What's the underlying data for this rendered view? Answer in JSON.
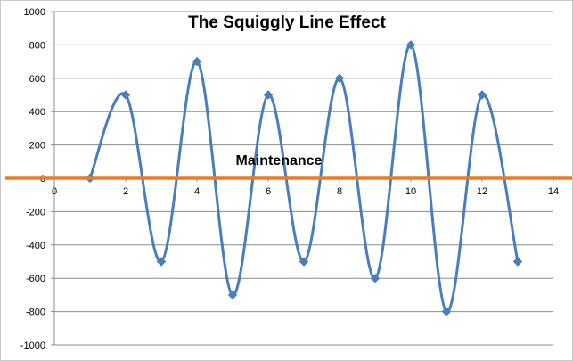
{
  "chart_data": {
    "type": "line",
    "title": "The Squiggly Line Effect",
    "xlabel": "",
    "ylabel": "",
    "xlim": [
      0,
      14
    ],
    "ylim": [
      -1000,
      1000
    ],
    "x_ticks": [
      0,
      2,
      4,
      6,
      8,
      10,
      12,
      14
    ],
    "y_ticks": [
      1000,
      800,
      600,
      400,
      200,
      0,
      -200,
      -400,
      -600,
      -800,
      -1000
    ],
    "grid": "horizontal",
    "legend": "none",
    "series": [
      {
        "x": [
          1,
          2,
          3,
          4,
          5,
          6,
          7,
          8,
          9,
          10,
          11,
          12,
          13
        ],
        "values": [
          0,
          500,
          -500,
          700,
          -700,
          500,
          -500,
          600,
          -600,
          800,
          -800,
          500,
          -500
        ],
        "color": "#4a7ebb",
        "smooth": true,
        "marker": "diamond"
      }
    ],
    "reference_line": {
      "y": 0,
      "color": "#ec7c22"
    },
    "annotation": {
      "text": "Maintenance",
      "x": 6.3,
      "y": 80
    }
  }
}
